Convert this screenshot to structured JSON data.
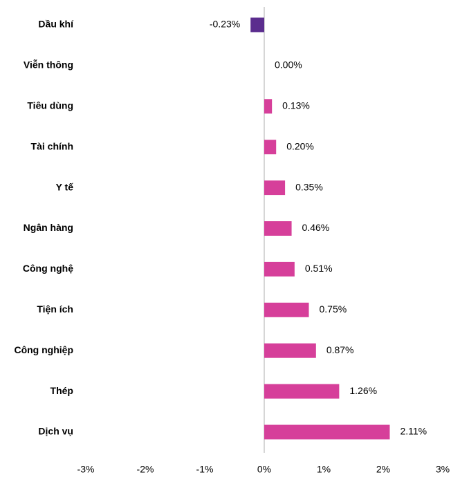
{
  "chart_data": {
    "type": "bar",
    "orientation": "horizontal",
    "categories": [
      "Dầu khí",
      "Viễn thông",
      "Tiêu dùng",
      "Tài chính",
      "Y tế",
      "Ngân hàng",
      "Công nghệ",
      "Tiện ích",
      "Công nghiệp",
      "Thép",
      "Dịch vụ"
    ],
    "values": [
      -0.23,
      0.0,
      0.13,
      0.2,
      0.35,
      0.46,
      0.51,
      0.75,
      0.87,
      1.26,
      2.11
    ],
    "value_labels": [
      "-0.23%",
      "0.00%",
      "0.13%",
      "0.20%",
      "0.35%",
      "0.46%",
      "0.51%",
      "0.75%",
      "0.87%",
      "1.26%",
      "2.11%"
    ],
    "colors": [
      "#5b2d8e",
      "#d63f9a",
      "#d63f9a",
      "#d63f9a",
      "#d63f9a",
      "#d63f9a",
      "#d63f9a",
      "#d63f9a",
      "#d63f9a",
      "#d63f9a",
      "#d63f9a"
    ],
    "xlim": [
      -3,
      3
    ],
    "xticks": [
      {
        "value": -3,
        "label": "-3%"
      },
      {
        "value": -2,
        "label": "-2%"
      },
      {
        "value": -1,
        "label": "-1%"
      },
      {
        "value": 0,
        "label": "0%"
      },
      {
        "value": 1,
        "label": "1%"
      },
      {
        "value": 2,
        "label": "2%"
      },
      {
        "value": 3,
        "label": "3%"
      }
    ]
  }
}
